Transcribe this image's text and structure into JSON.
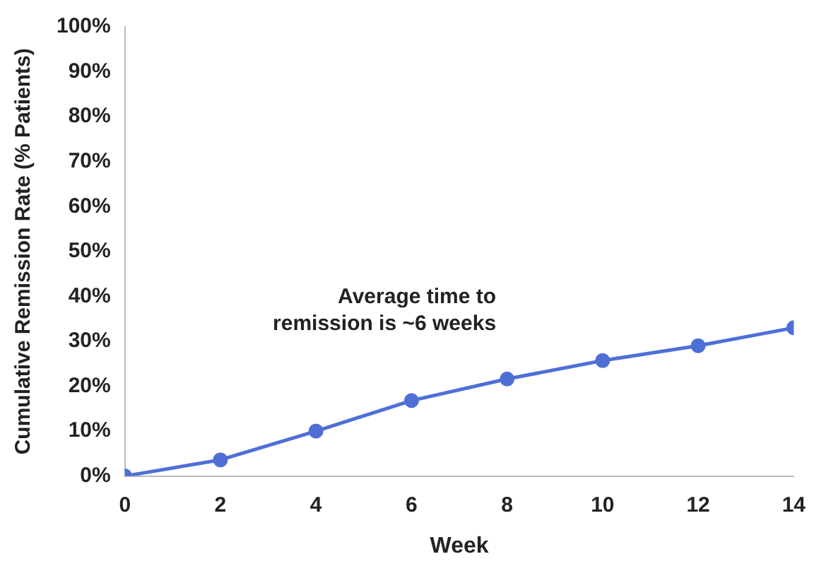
{
  "chart_data": {
    "type": "line",
    "xlabel": "Week",
    "ylabel": "Cumulative Remission Rate (% Patients)",
    "x": [
      0,
      2,
      4,
      6,
      8,
      10,
      12,
      14
    ],
    "series": [
      {
        "color": "#4f6fd6",
        "values": [
          0,
          3.6,
          10,
          16.8,
          21.6,
          25.7,
          29,
          33
        ]
      }
    ],
    "xlim": [
      0,
      14
    ],
    "xticks": [
      0,
      2,
      4,
      6,
      8,
      10,
      12,
      14
    ],
    "ylim": [
      0,
      100
    ],
    "yticks": [
      {
        "value": 0,
        "label": "0%"
      },
      {
        "value": 10,
        "label": "10%"
      },
      {
        "value": 20,
        "label": "20%"
      },
      {
        "value": 30,
        "label": "30%"
      },
      {
        "value": 40,
        "label": "40%"
      },
      {
        "value": 50,
        "label": "50%"
      },
      {
        "value": 60,
        "label": "60%"
      },
      {
        "value": 70,
        "label": "70%"
      },
      {
        "value": 80,
        "label": "80%"
      },
      {
        "value": 90,
        "label": "90%"
      },
      {
        "value": 100,
        "label": "100%"
      }
    ],
    "grid": false,
    "legend": false,
    "marker": "circle",
    "line_style": "solid",
    "annotations": [
      "Average time to\nremission is ~6 weeks"
    ]
  }
}
